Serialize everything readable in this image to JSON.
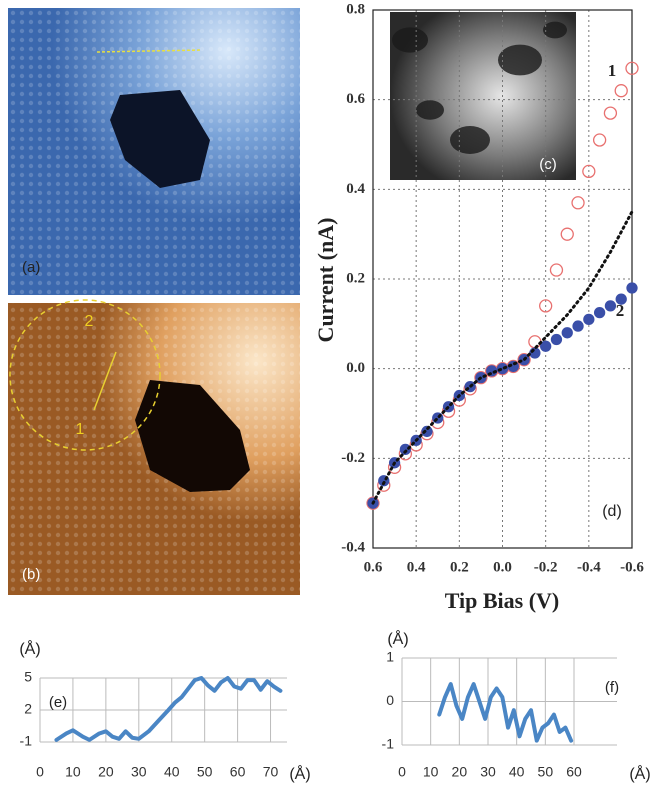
{
  "panels": {
    "a": "(a)",
    "b": "(b)",
    "b_markers": [
      "2",
      "1"
    ]
  },
  "chart_data": [
    {
      "type": "scatter",
      "ylabel": "Current (nA)",
      "xlabel": "Tip Bias (V)",
      "panel_label": "(d)",
      "inset_label": "(c)",
      "xlim": [
        0.6,
        -0.6
      ],
      "ylim": [
        -0.4,
        0.8
      ],
      "xticks": [
        0.6,
        0.4,
        0.2,
        {
          "value": 0,
          "label": "0.0"
        },
        -0.2,
        -0.4,
        -0.6
      ],
      "yticks": [
        -0.4,
        -0.2,
        {
          "value": 0,
          "label": "0.0"
        },
        0.2,
        0.4,
        0.6,
        0.8
      ],
      "grid": true,
      "x": [
        0.6,
        0.55,
        0.5,
        0.45,
        0.4,
        0.35,
        0.3,
        0.25,
        0.2,
        0.15,
        0.1,
        0.05,
        0,
        -0.05,
        -0.1,
        -0.15,
        -0.2,
        -0.25,
        -0.3,
        -0.35,
        -0.4,
        -0.45,
        -0.5,
        -0.55,
        -0.6
      ],
      "series": [
        {
          "name": "1",
          "color": "#e8706f",
          "marker": "open-circle",
          "values": [
            -0.3,
            -0.26,
            -0.22,
            -0.19,
            -0.17,
            -0.145,
            -0.12,
            -0.095,
            -0.07,
            -0.045,
            -0.02,
            -0.005,
            0,
            0.005,
            0.02,
            0.06,
            0.14,
            0.22,
            0.3,
            0.37,
            0.44,
            0.51,
            0.57,
            0.62,
            0.67
          ]
        },
        {
          "name": "2",
          "color": "#3a4fa8",
          "marker": "filled-circle",
          "values": [
            -0.3,
            -0.25,
            -0.21,
            -0.18,
            -0.16,
            -0.14,
            -0.11,
            -0.085,
            -0.06,
            -0.04,
            -0.02,
            -0.005,
            0,
            0.005,
            0.02,
            0.035,
            0.05,
            0.065,
            0.08,
            0.095,
            0.11,
            0.125,
            0.14,
            0.155,
            0.18
          ]
        },
        {
          "color": "#111111",
          "marker": "dotted-line",
          "values": [
            -0.3,
            null,
            -0.21,
            null,
            -0.16,
            null,
            -0.11,
            null,
            -0.06,
            null,
            -0.02,
            null,
            0,
            null,
            0.02,
            null,
            0.07,
            null,
            0.12,
            null,
            0.18,
            null,
            0.26,
            null,
            0.35
          ]
        }
      ]
    },
    {
      "type": "line",
      "ylabel": "(Å)",
      "xlabel": "(Å)",
      "panel_label": "(e)",
      "xlim": [
        0,
        75
      ],
      "ylim": [
        -1,
        5
      ],
      "xticks": [
        0,
        10,
        20,
        30,
        40,
        50,
        60,
        70
      ],
      "yticks": [
        -1,
        2,
        5
      ],
      "grid": true,
      "x": [
        5,
        8,
        10,
        13,
        15,
        18,
        20,
        22,
        24,
        26,
        28,
        30,
        33,
        36,
        39,
        41,
        43,
        45,
        47,
        49,
        51,
        53,
        55,
        57,
        59,
        61,
        63,
        65,
        67,
        69,
        71,
        73
      ],
      "series": [
        {
          "color": "#4a86c5",
          "values": [
            -0.8,
            -0.2,
            0.1,
            -0.5,
            -0.8,
            -0.2,
            0,
            -0.5,
            -0.7,
            0,
            -0.6,
            -0.7,
            0,
            1,
            2,
            2.7,
            3.2,
            4,
            4.8,
            5,
            4.3,
            3.8,
            4.6,
            5,
            4.2,
            4,
            4.8,
            4.8,
            3.9,
            4.7,
            4.2,
            3.8
          ]
        }
      ]
    },
    {
      "type": "line",
      "ylabel": "(Å)",
      "xlabel": "(Å)",
      "panel_label": "(f)",
      "xlim": [
        0,
        75
      ],
      "ylim": [
        -1,
        1
      ],
      "xticks": [
        0,
        10,
        20,
        30,
        40,
        50,
        60
      ],
      "yticks": [
        -1,
        0,
        1
      ],
      "grid": true,
      "x": [
        13,
        15,
        17,
        19,
        21,
        23,
        25,
        27,
        29,
        31,
        33,
        35,
        37,
        39,
        41,
        43,
        45,
        47,
        49,
        51,
        53,
        55,
        57,
        59
      ],
      "series": [
        {
          "color": "#4a86c5",
          "values": [
            -0.3,
            0.1,
            0.4,
            -0.1,
            -0.4,
            0.1,
            0.4,
            0,
            -0.4,
            0.1,
            0.3,
            0.1,
            -0.6,
            -0.2,
            -0.8,
            -0.4,
            -0.2,
            -0.9,
            -0.6,
            -0.5,
            -0.3,
            -0.7,
            -0.6,
            -0.9
          ]
        }
      ]
    }
  ]
}
